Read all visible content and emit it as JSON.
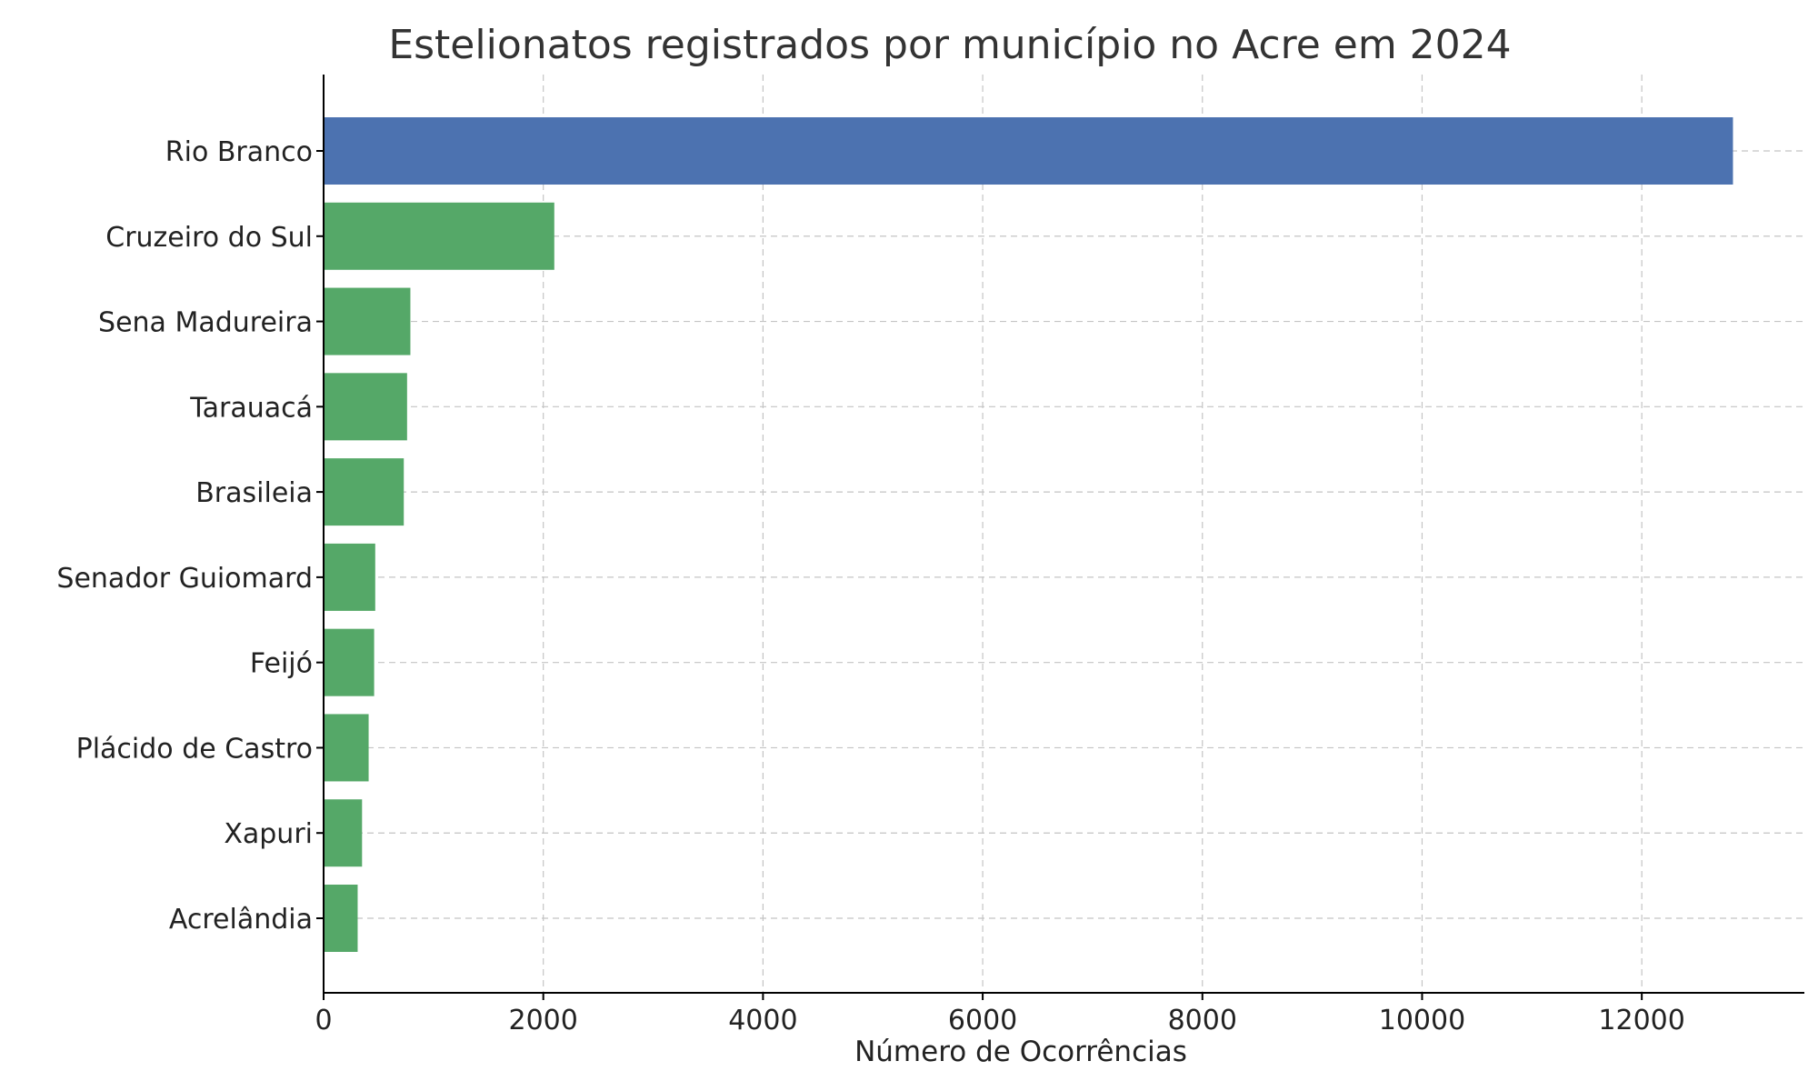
{
  "chart_data": {
    "type": "bar",
    "orientation": "horizontal",
    "title": "Estelionatos registrados por município no Acre em 2024",
    "xlabel": "Número de Ocorrências",
    "ylabel": "",
    "categories": [
      "Rio Branco",
      "Cruzeiro do Sul",
      "Sena Madureira",
      "Tarauacá",
      "Brasileia",
      "Senador Guiomard",
      "Feijó",
      "Plácido de Castro",
      "Xapuri",
      "Acrelândia"
    ],
    "values": [
      12830,
      2100,
      790,
      760,
      730,
      470,
      460,
      410,
      350,
      310
    ],
    "bar_colors": [
      "#4c72b0",
      "#55a868",
      "#55a868",
      "#55a868",
      "#55a868",
      "#55a868",
      "#55a868",
      "#55a868",
      "#55a868",
      "#55a868"
    ],
    "xlim": [
      0,
      13480
    ],
    "xticks": [
      0,
      2000,
      4000,
      6000,
      8000,
      10000,
      12000
    ],
    "xtick_labels": [
      "0",
      "2000",
      "4000",
      "6000",
      "8000",
      "10000",
      "12000"
    ],
    "grid": true,
    "grid_style": "dashed",
    "legend": "none"
  }
}
